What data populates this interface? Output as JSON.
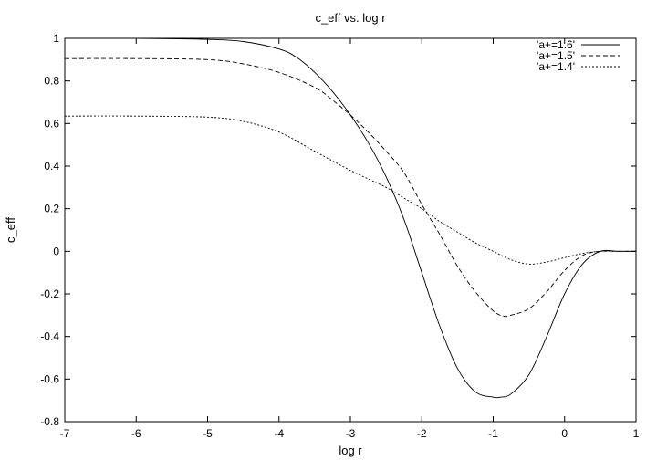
{
  "chart_data": {
    "type": "line",
    "title": "c_eff vs. log r",
    "xlabel": "log r",
    "ylabel": "c_eff",
    "xlim": [
      -7,
      1
    ],
    "ylim": [
      -0.8,
      1
    ],
    "xticks": [
      -7,
      -6,
      -5,
      -4,
      -3,
      -2,
      -1,
      0,
      1
    ],
    "yticks": [
      -0.8,
      -0.6,
      -0.4,
      -0.2,
      0,
      0.2,
      0.4,
      0.6,
      0.8,
      1
    ],
    "grid": false,
    "legend_position": "top-right",
    "series": [
      {
        "name": "'a+=1.6'",
        "dash": "solid",
        "x": [
          -7,
          -6,
          -5,
          -4.5,
          -4,
          -3.75,
          -3.5,
          -3.25,
          -3,
          -2.75,
          -2.5,
          -2.25,
          -2,
          -1.75,
          -1.5,
          -1.25,
          -1,
          -0.9,
          -0.75,
          -0.5,
          -0.25,
          0,
          0.25,
          0.5,
          0.75,
          1
        ],
        "y": [
          1.0,
          1.0,
          0.995,
          0.985,
          0.95,
          0.91,
          0.84,
          0.75,
          0.64,
          0.51,
          0.35,
          0.15,
          -0.1,
          -0.35,
          -0.55,
          -0.66,
          -0.685,
          -0.685,
          -0.67,
          -0.58,
          -0.4,
          -0.2,
          -0.06,
          0.0,
          0.0,
          0.0
        ]
      },
      {
        "name": "'a+=1.5'",
        "dash": "dashed",
        "x": [
          -7,
          -6,
          -5,
          -4.5,
          -4,
          -3.5,
          -3.25,
          -3,
          -2.75,
          -2.5,
          -2.25,
          -2,
          -1.75,
          -1.5,
          -1.25,
          -1,
          -0.85,
          -0.75,
          -0.5,
          -0.25,
          0,
          0.25,
          0.5,
          0.75,
          1
        ],
        "y": [
          0.905,
          0.905,
          0.9,
          0.88,
          0.84,
          0.77,
          0.71,
          0.64,
          0.56,
          0.47,
          0.37,
          0.22,
          0.08,
          -0.07,
          -0.19,
          -0.28,
          -0.305,
          -0.3,
          -0.27,
          -0.19,
          -0.09,
          -0.02,
          0.0,
          0.0,
          0.0
        ]
      },
      {
        "name": "'a+=1.4'",
        "dash": "dotted",
        "x": [
          -7,
          -6,
          -5,
          -4.5,
          -4,
          -3.5,
          -3,
          -2.5,
          -2.25,
          -2,
          -1.75,
          -1.5,
          -1.25,
          -1,
          -0.75,
          -0.5,
          -0.25,
          0,
          0.25,
          0.5,
          0.75,
          1
        ],
        "y": [
          0.635,
          0.635,
          0.63,
          0.61,
          0.56,
          0.47,
          0.38,
          0.3,
          0.25,
          0.2,
          0.14,
          0.09,
          0.04,
          0.0,
          -0.04,
          -0.06,
          -0.05,
          -0.03,
          -0.01,
          0.0,
          0.0,
          0.0
        ]
      }
    ]
  }
}
